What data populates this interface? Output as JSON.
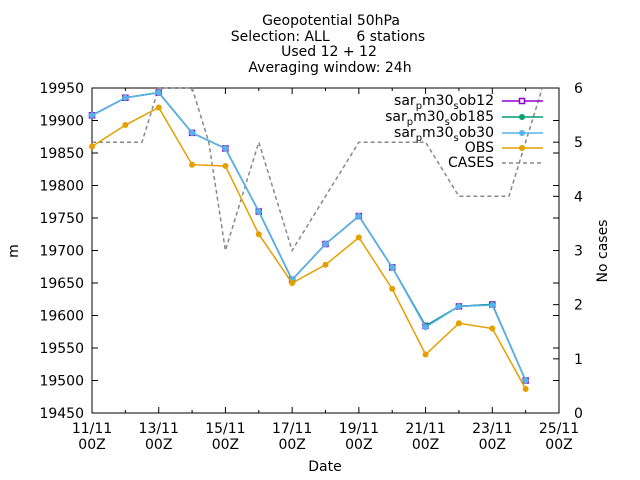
{
  "chart_data": {
    "type": "line",
    "title_lines": [
      "Geopotential 50hPa",
      "Selection: ALL      6 stations",
      "Used 12 + 12",
      "Averaging window: 24h"
    ],
    "xlabel": "Date",
    "ylabel": "m",
    "y2label": "No cases",
    "xlim": [
      0,
      14
    ],
    "ylim": [
      19450,
      19950
    ],
    "y2lim": [
      0,
      6
    ],
    "x_ticks": [
      {
        "x": 0,
        "line1": "11/11",
        "line2": "00Z"
      },
      {
        "x": 2,
        "line1": "13/11",
        "line2": "00Z"
      },
      {
        "x": 4,
        "line1": "15/11",
        "line2": "00Z"
      },
      {
        "x": 6,
        "line1": "17/11",
        "line2": "00Z"
      },
      {
        "x": 8,
        "line1": "19/11",
        "line2": "00Z"
      },
      {
        "x": 10,
        "line1": "21/11",
        "line2": "00Z"
      },
      {
        "x": 12,
        "line1": "23/11",
        "line2": "00Z"
      },
      {
        "x": 14,
        "line1": "25/11",
        "line2": "00Z"
      }
    ],
    "y_ticks": [
      19450,
      19500,
      19550,
      19600,
      19650,
      19700,
      19750,
      19800,
      19850,
      19900,
      19950
    ],
    "y2_ticks": [
      0,
      1,
      2,
      3,
      4,
      5,
      6
    ],
    "legend_position": "top-right",
    "grid": false,
    "series": [
      {
        "name": "sar_pm30_sob12",
        "legend_parts": [
          "sar",
          "p",
          "m30",
          "s",
          "ob12"
        ],
        "color": "#9400d3",
        "marker": "square-open",
        "axis": "y",
        "x": [
          0,
          1,
          2,
          3,
          4,
          5,
          6,
          7,
          8,
          9,
          10,
          11,
          12,
          13
        ],
        "y": [
          19908,
          19935,
          19943,
          19881,
          19857,
          19760,
          19655,
          19710,
          19753,
          19674,
          19584,
          19614,
          19617,
          19500
        ]
      },
      {
        "name": "sar_pm30_sob185",
        "legend_parts": [
          "sar",
          "p",
          "m30",
          "s",
          "ob185"
        ],
        "color": "#009e73",
        "marker": "circle",
        "axis": "y",
        "x": [
          0,
          1,
          2,
          3,
          4,
          5,
          6,
          7,
          8,
          9,
          10,
          11,
          12,
          13
        ],
        "y": [
          19908,
          19935,
          19943,
          19881,
          19857,
          19760,
          19655,
          19710,
          19753,
          19674,
          19584,
          19614,
          19617,
          19500
        ]
      },
      {
        "name": "sar_pm30_sob30",
        "legend_parts": [
          "sar",
          "p",
          "m30",
          "s",
          "ob30"
        ],
        "color": "#56b4e9",
        "marker": "circle",
        "axis": "y",
        "x": [
          0,
          1,
          2,
          3,
          4,
          5,
          6,
          7,
          8,
          9,
          10,
          11,
          12,
          13
        ],
        "y": [
          19908,
          19935,
          19943,
          19881,
          19857,
          19760,
          19655,
          19710,
          19753,
          19674,
          19582,
          19614,
          19616,
          19500
        ]
      },
      {
        "name": "OBS",
        "color": "#e69f00",
        "marker": "circle",
        "axis": "y",
        "x": [
          0,
          1,
          2,
          3,
          4,
          5,
          6,
          7,
          8,
          9,
          10,
          11,
          12,
          13
        ],
        "y": [
          19860,
          19893,
          19920,
          19832,
          19830,
          19725,
          19650,
          19678,
          19720,
          19641,
          19540,
          19588,
          19580,
          19487
        ]
      },
      {
        "name": "CASES",
        "color": "#888888",
        "style": "dashed",
        "axis": "y2",
        "x": [
          0,
          0.5,
          1,
          1.5,
          2,
          2.5,
          3,
          3.5,
          4,
          4.5,
          5,
          5.5,
          6,
          6.5,
          7,
          7.5,
          8,
          8.5,
          9,
          9.5,
          10,
          10.5,
          11,
          11.5,
          12,
          12.5,
          13,
          13.5
        ],
        "y": [
          5,
          5,
          5,
          5,
          6,
          6,
          6,
          5,
          3,
          4,
          5,
          4,
          3,
          3.5,
          4,
          4.5,
          5,
          5,
          5,
          5,
          5,
          4.5,
          4,
          4,
          4,
          4,
          5,
          6
        ]
      }
    ]
  }
}
